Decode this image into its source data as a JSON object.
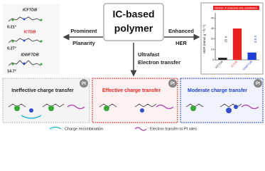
{
  "molecules": [
    {
      "name": "ICFTDB",
      "angle": "0.21°"
    },
    {
      "name": "ICTDB",
      "angle": "0.27°"
    },
    {
      "name": "IDWFTDB",
      "angle": "14.7°"
    }
  ],
  "center": {
    "title_line1": "IC-based",
    "title_line2": "polymer",
    "left_line1": "Prominent",
    "left_line2": "Planarity",
    "right_line1": "Enhanced",
    "right_line2": "HER",
    "down_line1": "Ultrafast",
    "down_line2": "Electron transfer"
  },
  "chart_data": {
    "type": "bar",
    "title": "Number of molecular side substitution",
    "y_label": "HER (mmol g⁻¹ h⁻¹)",
    "categories": [
      "ICFTDB",
      "ICTDB",
      "IDWFTDB"
    ],
    "values": [
      2,
      30,
      7
    ],
    "colors": [
      "#222222",
      "#e8231f",
      "#1f3fd6"
    ],
    "ylim": [
      0,
      45
    ],
    "yticks": [
      0,
      10,
      20,
      30,
      40
    ],
    "annotations": [
      "15 X",
      "3.8 X"
    ]
  },
  "panels": [
    {
      "title": "Ineffective charge transfer",
      "badge": "Pt"
    },
    {
      "title": "Effective charge transfer",
      "badge": "Pt"
    },
    {
      "title": "Moderate charge transfer",
      "badge": "Pt"
    }
  ],
  "legend": [
    ": Charge recombination",
    ": Electron transfer to Pt sites"
  ]
}
